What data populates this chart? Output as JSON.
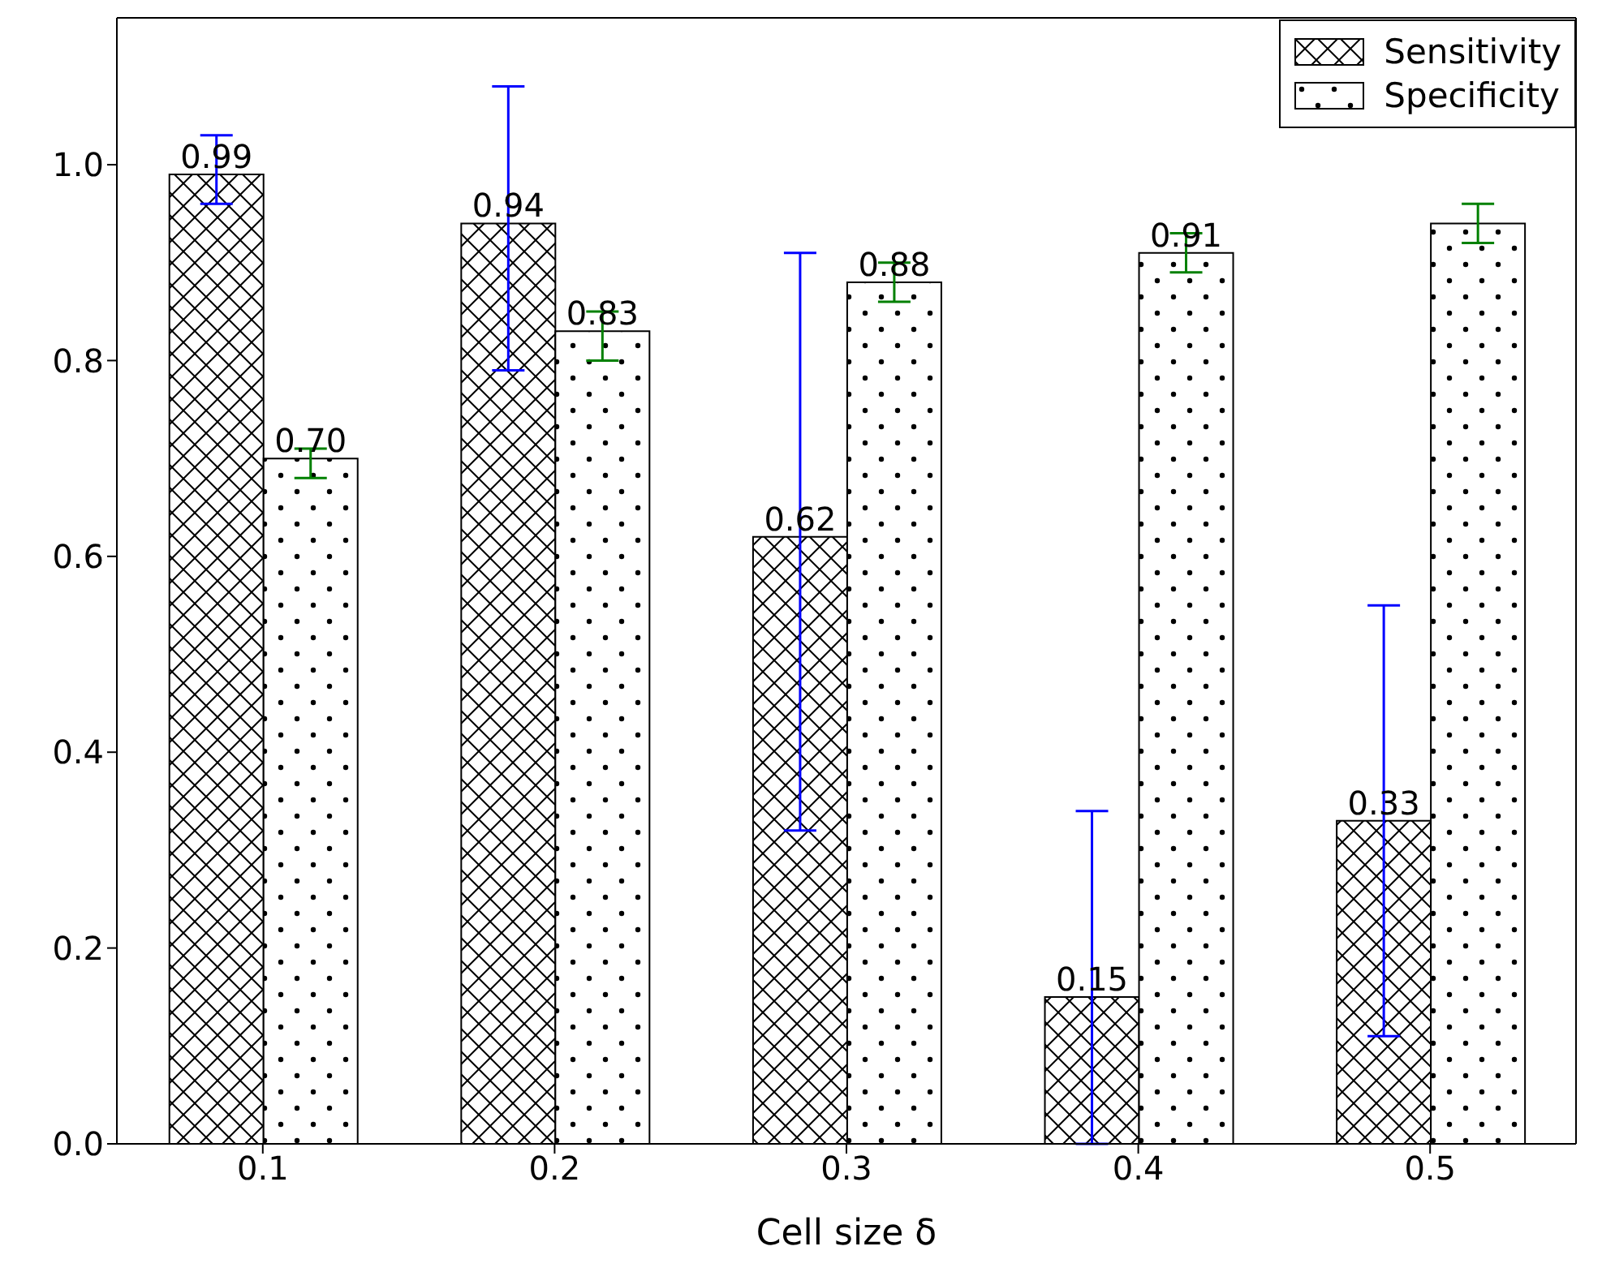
{
  "chart_data": {
    "type": "bar",
    "xlabel": "Cell size δ",
    "categories": [
      "0.1",
      "0.2",
      "0.3",
      "0.4",
      "0.5"
    ],
    "ylim": [
      0,
      1.15
    ],
    "yticks": [
      {
        "value": 0,
        "label": "0.0"
      },
      0.2,
      0.4,
      0.6,
      0.8,
      {
        "value": 1,
        "label": "1.0"
      }
    ],
    "legend": "top right",
    "grid": false,
    "series": [
      {
        "name": "Sensitivity",
        "color": "#000000",
        "values": [
          0.99,
          0.94,
          0.62,
          0.15,
          0.33
        ],
        "value_labels": [
          "0.99",
          "0.94",
          "0.62",
          "0.15",
          "0.33"
        ],
        "errors": [
          [
            0.96,
            1.03
          ],
          [
            0.79,
            1.08
          ],
          [
            0.32,
            0.91
          ],
          [
            0.0,
            0.34
          ],
          [
            0.11,
            0.55
          ]
        ]
      },
      {
        "name": "Specificity",
        "color": "#000000",
        "values": [
          0.7,
          0.83,
          0.88,
          0.91,
          0.94
        ],
        "value_labels": [
          "0.70",
          "0.83",
          "0.88",
          "0.91",
          null
        ],
        "errors": [
          [
            0.68,
            0.71
          ],
          [
            0.8,
            0.85
          ],
          [
            0.86,
            0.9
          ],
          [
            0.89,
            0.93
          ],
          [
            0.92,
            0.96
          ]
        ]
      }
    ]
  }
}
